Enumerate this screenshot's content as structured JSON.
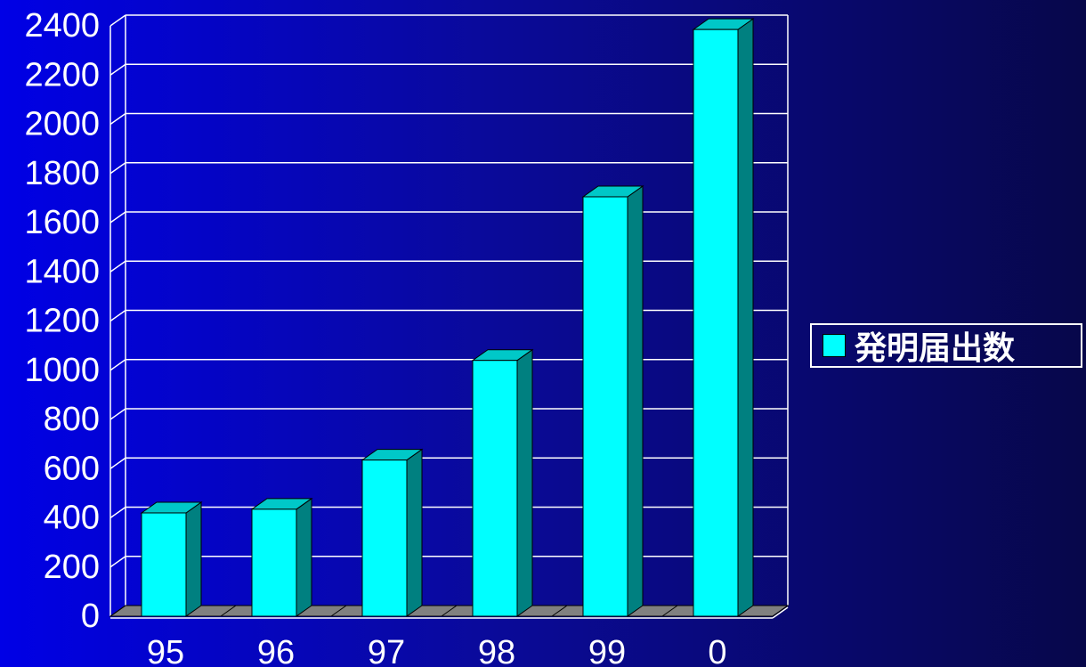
{
  "chart_data": {
    "type": "bar",
    "categories": [
      "95",
      "96",
      "97",
      "98",
      "99",
      "0"
    ],
    "series": [
      {
        "name": "発明届出数",
        "values": [
          420,
          435,
          635,
          1040,
          1705,
          2385
        ]
      }
    ],
    "y_ticks": [
      "0",
      "200",
      "400",
      "600",
      "800",
      "1000",
      "1200",
      "1400",
      "1600",
      "1800",
      "2000",
      "2200",
      "2400"
    ],
    "ylim": [
      0,
      2400
    ],
    "grid": true,
    "legend": "right",
    "bar_style": "3d-column",
    "colors": {
      "bar_front": "#00ffff",
      "bar_top": "#00c8c8",
      "bar_side": "#008080",
      "floor": "#808080",
      "gridline": "#ffffff",
      "text": "#ffffff"
    }
  }
}
